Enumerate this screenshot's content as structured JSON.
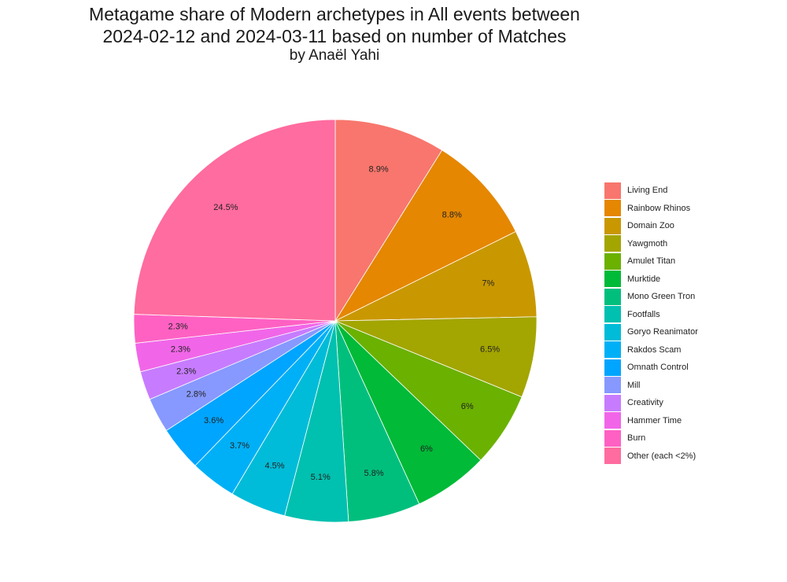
{
  "title_lines": [
    "Metagame share of Modern archetypes in All events between",
    "2024-02-12 and 2024-03-11 based on number of Matches"
  ],
  "subtitle": "by Anaël Yahi",
  "chart_data": {
    "type": "pie",
    "title": "Metagame share of Modern archetypes in All events between 2024-02-12 and 2024-03-11 based on number of Matches",
    "subtitle": "by Anaël Yahi",
    "legend_position": "right",
    "slices": [
      {
        "label": "Living End",
        "value": 8.9,
        "display": "8.9%",
        "color": "#F8766D"
      },
      {
        "label": "Rainbow Rhinos",
        "value": 8.8,
        "display": "8.8%",
        "color": "#E58700"
      },
      {
        "label": "Domain Zoo",
        "value": 7.0,
        "display": "7%",
        "color": "#C99800"
      },
      {
        "label": "Yawgmoth",
        "value": 6.5,
        "display": "6.5%",
        "color": "#A3A500"
      },
      {
        "label": "Amulet Titan",
        "value": 6.0,
        "display": "6%",
        "color": "#6BB100"
      },
      {
        "label": "Murktide",
        "value": 6.0,
        "display": "6%",
        "color": "#00BA38"
      },
      {
        "label": "Mono Green Tron",
        "value": 5.8,
        "display": "5.8%",
        "color": "#00BF7D"
      },
      {
        "label": "Footfalls",
        "value": 5.1,
        "display": "5.1%",
        "color": "#00C0AF"
      },
      {
        "label": "Goryo Reanimator",
        "value": 4.5,
        "display": "4.5%",
        "color": "#00BCD8"
      },
      {
        "label": "Rakdos Scam",
        "value": 3.7,
        "display": "3.7%",
        "color": "#00B0F6"
      },
      {
        "label": "Omnath Control",
        "value": 3.6,
        "display": "3.6%",
        "color": "#00A5FF"
      },
      {
        "label": "Mill",
        "value": 2.8,
        "display": "2.8%",
        "color": "#8799FF"
      },
      {
        "label": "Creativity",
        "value": 2.3,
        "display": "2.3%",
        "color": "#C77CFF"
      },
      {
        "label": "Hammer Time",
        "value": 2.3,
        "display": "2.3%",
        "color": "#F166E8"
      },
      {
        "label": "Burn",
        "value": 2.3,
        "display": "2.3%",
        "color": "#FF61C3"
      },
      {
        "label": "Other (each <2%)",
        "value": 24.5,
        "display": "24.5%",
        "color": "#FF6C9F"
      }
    ]
  }
}
